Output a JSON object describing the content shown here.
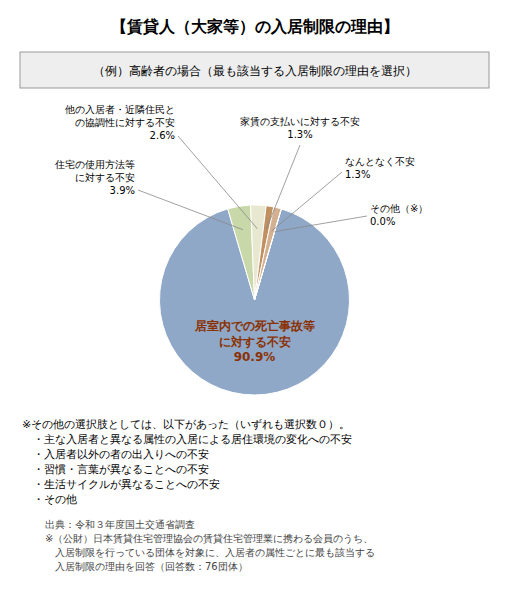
{
  "chart_data": {
    "type": "pie",
    "title": "【賃貸人（大家等）の入居制限の理由】",
    "subtitle": "（例）高齢者の場合（最も該当する入居制限の理由を選択）",
    "categories": [
      "居室内での死亡事故等\nに対する不安",
      "住宅の使用方法等\nに対する不安",
      "他の入居者・近隣住民と\nの協調性に対する不安",
      "家賃の支払いに対する不安",
      "なんとなく不安",
      "その他（※）"
    ],
    "values": [
      90.9,
      3.9,
      2.6,
      1.3,
      1.3,
      0.0
    ],
    "value_labels": [
      "90.9%",
      "3.9%",
      "2.6%",
      "1.3%",
      "1.3%",
      "0.0%"
    ],
    "colors": [
      "#8fa8c8",
      "#c8d8a8",
      "#e8e8d0",
      "#c09060",
      "#d4b090",
      "#b0a090"
    ],
    "data_labels": true,
    "footnote": [
      "※その他の選択肢としては、以下があった（いずれも選択数０）。",
      "　・主な入居者と異なる属性の入居による居住環境の変化への不安",
      "　・入居者以外の者の出入りへの不安",
      "　・習慣・言葉が異なることへの不安",
      "　・生活サイクルが異なることへの不安",
      "　・その他"
    ],
    "source": [
      "出典：令和３年度国土交通省調査",
      "※（公財）日本賃貸住宅管理協会の賃貸住宅管理業に携わる会員のうち、",
      "　入居制限を行っている団体を対象に、入居者の属性ごとに最も該当する",
      "　入居制限の理由を回答（回答数：76団体）"
    ]
  }
}
